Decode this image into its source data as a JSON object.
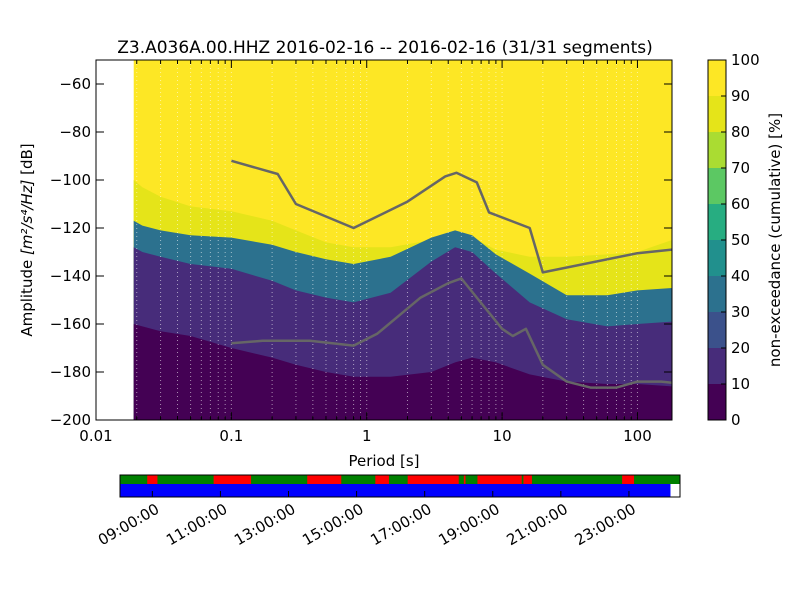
{
  "chart_data": {
    "type": "heatmap",
    "title": "Z3.A036A.00.HHZ   2016-02-16 -- 2016-02-16  (31/31 segments)",
    "xlabel": "Period [s]",
    "ylabel_prefix": "Amplitude ",
    "ylabel_unit_math": "[m²/s⁴/Hz]",
    "ylabel_suffix": " [dB]",
    "x_scale": "log",
    "xlim": [
      0.01,
      180
    ],
    "ylim": [
      -200,
      -50
    ],
    "x_tick_labels": [
      "0.01",
      "0.1",
      "1",
      "10",
      "100"
    ],
    "x_tick_values": [
      0.01,
      0.1,
      1,
      10,
      100
    ],
    "y_tick_labels": [
      "−200",
      "−180",
      "−160",
      "−140",
      "−120",
      "−100",
      "−80",
      "−60"
    ],
    "y_tick_values": [
      -200,
      -180,
      -160,
      -140,
      -120,
      -100,
      -80,
      -60
    ],
    "grid": "dotted-vertical",
    "data_period_start": 0.019,
    "colorbar": {
      "label": "non-exceedance (cumulative) [%]",
      "range": [
        0,
        100
      ],
      "tick_labels": [
        "0",
        "10",
        "20",
        "30",
        "40",
        "50",
        "60",
        "70",
        "80",
        "90",
        "100"
      ],
      "colors": [
        "#440154",
        "#472c7a",
        "#3b518b",
        "#2c718e",
        "#21908d",
        "#27ad81",
        "#5cc863",
        "#aadc32",
        "#e5e419",
        "#fde725"
      ]
    },
    "contours": [
      {
        "periods": [
          0.019,
          0.022,
          0.03,
          0.05,
          0.1,
          0.2,
          0.3,
          0.5,
          0.8,
          1.5,
          3,
          4.5,
          6,
          9,
          16,
          30,
          60,
          100,
          180
        ],
        "values": [
          -160,
          -161,
          -163,
          -165,
          -170,
          -174,
          -177,
          -180,
          -182,
          -182,
          -180,
          -176,
          -174,
          -176,
          -181,
          -184,
          -185,
          -185,
          -186
        ],
        "percent": 2
      },
      {
        "periods": [
          0.019,
          0.022,
          0.03,
          0.05,
          0.1,
          0.2,
          0.3,
          0.5,
          0.8,
          1.5,
          3,
          4.5,
          6,
          9,
          16,
          30,
          60,
          100,
          180
        ],
        "values": [
          -128,
          -130,
          -132,
          -135,
          -137,
          -142,
          -146,
          -149,
          -151,
          -147,
          -134,
          -128,
          -130,
          -139,
          -151,
          -158,
          -161,
          -160,
          -159
        ],
        "percent": 10
      },
      {
        "periods": [
          0.019,
          0.022,
          0.03,
          0.05,
          0.1,
          0.2,
          0.3,
          0.5,
          0.8,
          1.5,
          3,
          4.5,
          6,
          9,
          16,
          30,
          60,
          100,
          180
        ],
        "values": [
          -117,
          -119,
          -121,
          -123,
          -124,
          -127,
          -130,
          -133,
          -135,
          -132,
          -124,
          -121,
          -123,
          -131,
          -139,
          -148,
          -148,
          -146,
          -145
        ],
        "percent": 35
      },
      {
        "periods": [
          0.019,
          0.022,
          0.03,
          0.05,
          0.1,
          0.2,
          0.3,
          0.5,
          0.8,
          1.5,
          3,
          4.5,
          6,
          9,
          16,
          30,
          60,
          100,
          180
        ],
        "values": [
          -100,
          -103,
          -107,
          -111,
          -113,
          -117,
          -121,
          -126,
          -128,
          -128,
          -125,
          -123,
          -124,
          -129,
          -132,
          -132,
          -131,
          -130,
          -125
        ],
        "percent": 80
      }
    ],
    "series": [
      {
        "name": "",
        "color": "#666666",
        "x": [
          0.1,
          0.22,
          0.3,
          0.8,
          2,
          3.8,
          4.6,
          6.5,
          8,
          16,
          20,
          100,
          180
        ],
        "y": [
          -92,
          -97.5,
          -110,
          -120,
          -109,
          -98.5,
          -97,
          -101,
          -113.5,
          -120,
          -138.5,
          -130.5,
          -129
        ]
      },
      {
        "name": "",
        "color": "#666666",
        "x": [
          0.1,
          0.17,
          0.38,
          0.8,
          1.2,
          2.5,
          4,
          5,
          6.5,
          10,
          12,
          15,
          20,
          30,
          45,
          70,
          100,
          150,
          180
        ],
        "y": [
          -168,
          -167,
          -167,
          -169,
          -164,
          -149,
          -143,
          -141,
          -149,
          -162,
          -165,
          -162,
          -177,
          -184,
          -186.5,
          -186.5,
          -184,
          -184,
          -184.5
        ]
      }
    ]
  },
  "timeline": {
    "tick_labels": [
      "09:00:00",
      "11:00:00",
      "13:00:00",
      "15:00:00",
      "17:00:00",
      "19:00:00",
      "21:00:00",
      "23:00:00"
    ],
    "tick_hours": [
      9,
      11,
      13,
      15,
      17,
      19,
      21,
      23
    ],
    "start_hour": 8.05,
    "end_hour": 24.5,
    "coverage_end_hour": 24.22,
    "ok_color": "#008000",
    "gap_color": "#ff0000",
    "coverage_color": "#0000ff",
    "gap_ranges": [
      [
        8.85,
        9.15
      ],
      [
        10.8,
        11.9
      ],
      [
        13.55,
        14.55
      ],
      [
        15.55,
        15.95
      ],
      [
        16.5,
        18.0
      ],
      [
        18.15,
        18.2
      ],
      [
        18.55,
        19.85
      ],
      [
        19.9,
        20.15
      ],
      [
        22.8,
        23.15
      ]
    ]
  }
}
